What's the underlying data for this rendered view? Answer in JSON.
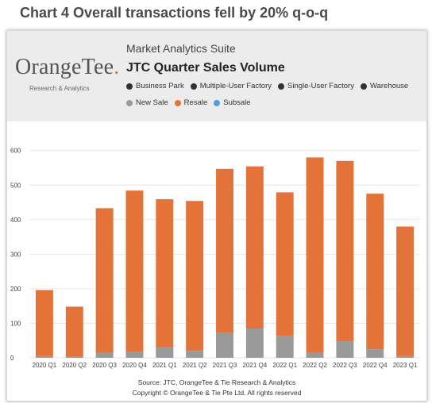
{
  "caption": "Chart 4 Overall transactions fell by 20% q-o-q",
  "logo": {
    "word_main": "OrangeTee",
    "word_mark": ".",
    "subtitle": "Research & Analytics"
  },
  "header": {
    "suite": "Market Analytics Suite",
    "title": "JTC Quarter Sales Volume"
  },
  "legend_row1": [
    {
      "label": "Business Park",
      "color": "#333333"
    },
    {
      "label": "Multiple-User Factory",
      "color": "#333333"
    },
    {
      "label": "Single-User Factory",
      "color": "#333333"
    },
    {
      "label": "Warehouse",
      "color": "#333333"
    }
  ],
  "legend_row2": [
    {
      "label": "New Sale",
      "color": "#999999"
    },
    {
      "label": "Resale",
      "color": "#e4733a"
    },
    {
      "label": "Subsale",
      "color": "#4f9fe0"
    }
  ],
  "chart_data": {
    "type": "bar",
    "stacked": true,
    "categories": [
      "2020 Q1",
      "2020 Q2",
      "2020 Q3",
      "2020 Q4",
      "2021 Q1",
      "2021 Q2",
      "2021 Q3",
      "2021 Q4",
      "2022 Q1",
      "2022 Q2",
      "2022 Q3",
      "2022 Q4",
      "2023 Q1"
    ],
    "series": [
      {
        "name": "New Sale",
        "color": "#999999",
        "values": [
          5,
          3,
          15,
          17,
          30,
          20,
          72,
          85,
          64,
          15,
          48,
          25,
          5
        ]
      },
      {
        "name": "Resale",
        "color": "#e4733a",
        "values": [
          191,
          145,
          418,
          467,
          429,
          434,
          475,
          469,
          415,
          565,
          522,
          450,
          375
        ]
      },
      {
        "name": "Subsale",
        "color": "#4f9fe0",
        "values": [
          0,
          0,
          0,
          0,
          0,
          0,
          0,
          0,
          0,
          0,
          0,
          0,
          0
        ]
      }
    ],
    "totals": [
      196,
      148,
      433,
      484,
      459,
      454,
      547,
      554,
      479,
      580,
      570,
      475,
      380
    ],
    "yticks": [
      0,
      100,
      200,
      300,
      400,
      500,
      600
    ],
    "ylim": [
      0,
      620
    ],
    "grid": true,
    "legend_position": "top"
  },
  "source": {
    "line1": "Source: JTC, OrangeTee & Tie Research & Analytics",
    "line2": "Copyright © OrangeTee & Tie Pte Ltd. All rights reserved"
  }
}
